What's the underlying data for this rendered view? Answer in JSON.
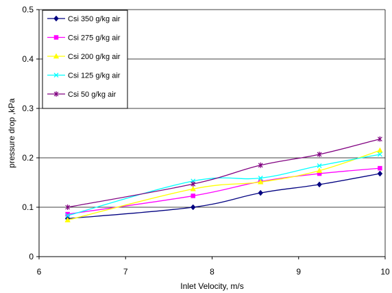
{
  "chart_data": {
    "type": "line",
    "title": "",
    "xlabel": "Inlet Velocity, m/s",
    "ylabel": "pressure drop ,kPa",
    "xlim": [
      6,
      10
    ],
    "ylim": [
      0,
      0.5
    ],
    "xticks": [
      "6",
      "7",
      "8",
      "9",
      "10"
    ],
    "yticks": [
      "0",
      "0.1",
      "0.2",
      "0.3",
      "0.4",
      "0.5"
    ],
    "grid": "horizontal",
    "legend_position": "top-left",
    "series": [
      {
        "name": "Csi 350 g/kg air",
        "color": "#000080",
        "marker": "diamond",
        "x": [
          6.33,
          7.78,
          8.56,
          9.24,
          9.94
        ],
        "y": [
          0.077,
          0.1,
          0.129,
          0.146,
          0.168
        ]
      },
      {
        "name": "Csi 275 g/kg air",
        "color": "#FF00FF",
        "marker": "square",
        "x": [
          6.33,
          7.78,
          8.56,
          9.24,
          9.94
        ],
        "y": [
          0.086,
          0.123,
          0.152,
          0.168,
          0.179
        ]
      },
      {
        "name": "Csi 200 g/kg air",
        "color": "#FFFF00",
        "marker": "triangle",
        "x": [
          6.33,
          7.78,
          8.56,
          9.24,
          9.94
        ],
        "y": [
          0.074,
          0.137,
          0.151,
          0.174,
          0.215
        ]
      },
      {
        "name": "Csi 125 g/kg air",
        "color": "#00FFFF",
        "marker": "x",
        "x": [
          6.33,
          7.78,
          8.56,
          9.24,
          9.94
        ],
        "y": [
          0.083,
          0.153,
          0.159,
          0.184,
          0.207
        ]
      },
      {
        "name": "Csi 50 g/kg air",
        "color": "#800080",
        "marker": "star",
        "x": [
          6.33,
          7.78,
          8.56,
          9.24,
          9.94
        ],
        "y": [
          0.1,
          0.147,
          0.185,
          0.207,
          0.238
        ]
      }
    ]
  }
}
